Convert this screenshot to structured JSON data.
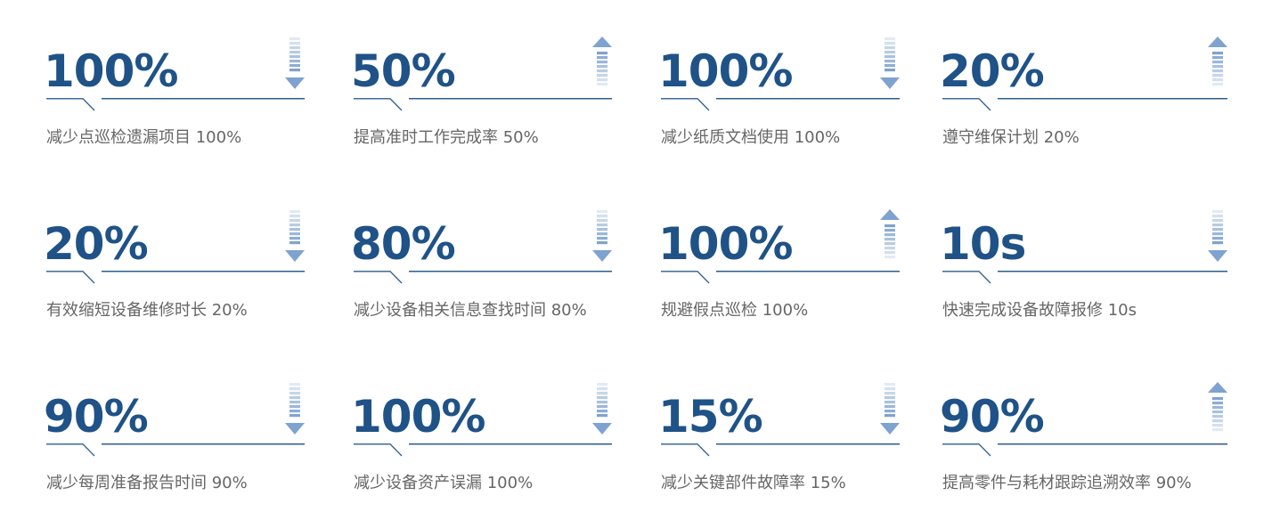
{
  "colors": {
    "value": "#1f5287",
    "line": "#2d5d8e",
    "arrow": "#7fa3d0",
    "label": "#666666"
  },
  "cards": [
    {
      "value": "100%",
      "label": "减少点巡检遗漏项目 100%",
      "direction": "down"
    },
    {
      "value": "50%",
      "label": "提高准时工作完成率 50%",
      "direction": "up"
    },
    {
      "value": "100%",
      "label": "减少纸质文档使用 100%",
      "direction": "down"
    },
    {
      "value": "20%",
      "label": "遵守维保计划 20%",
      "direction": "up"
    },
    {
      "value": "20%",
      "label": "有效缩短设备维修时长 20%",
      "direction": "down"
    },
    {
      "value": "80%",
      "label": "减少设备相关信息查找时间 80%",
      "direction": "down"
    },
    {
      "value": "100%",
      "label": "规避假点巡检 100%",
      "direction": "up"
    },
    {
      "value": "10s",
      "label": "快速完成设备故障报修 10s",
      "direction": "down"
    },
    {
      "value": "90%",
      "label": "减少每周准备报告时间 90%",
      "direction": "down"
    },
    {
      "value": "100%",
      "label": "减少设备资产误漏 100%",
      "direction": "down"
    },
    {
      "value": "15%",
      "label": "减少关键部件故障率 15%",
      "direction": "down"
    },
    {
      "value": "90%",
      "label": "提高零件与耗材跟踪追溯效率 90%",
      "direction": "up"
    }
  ]
}
